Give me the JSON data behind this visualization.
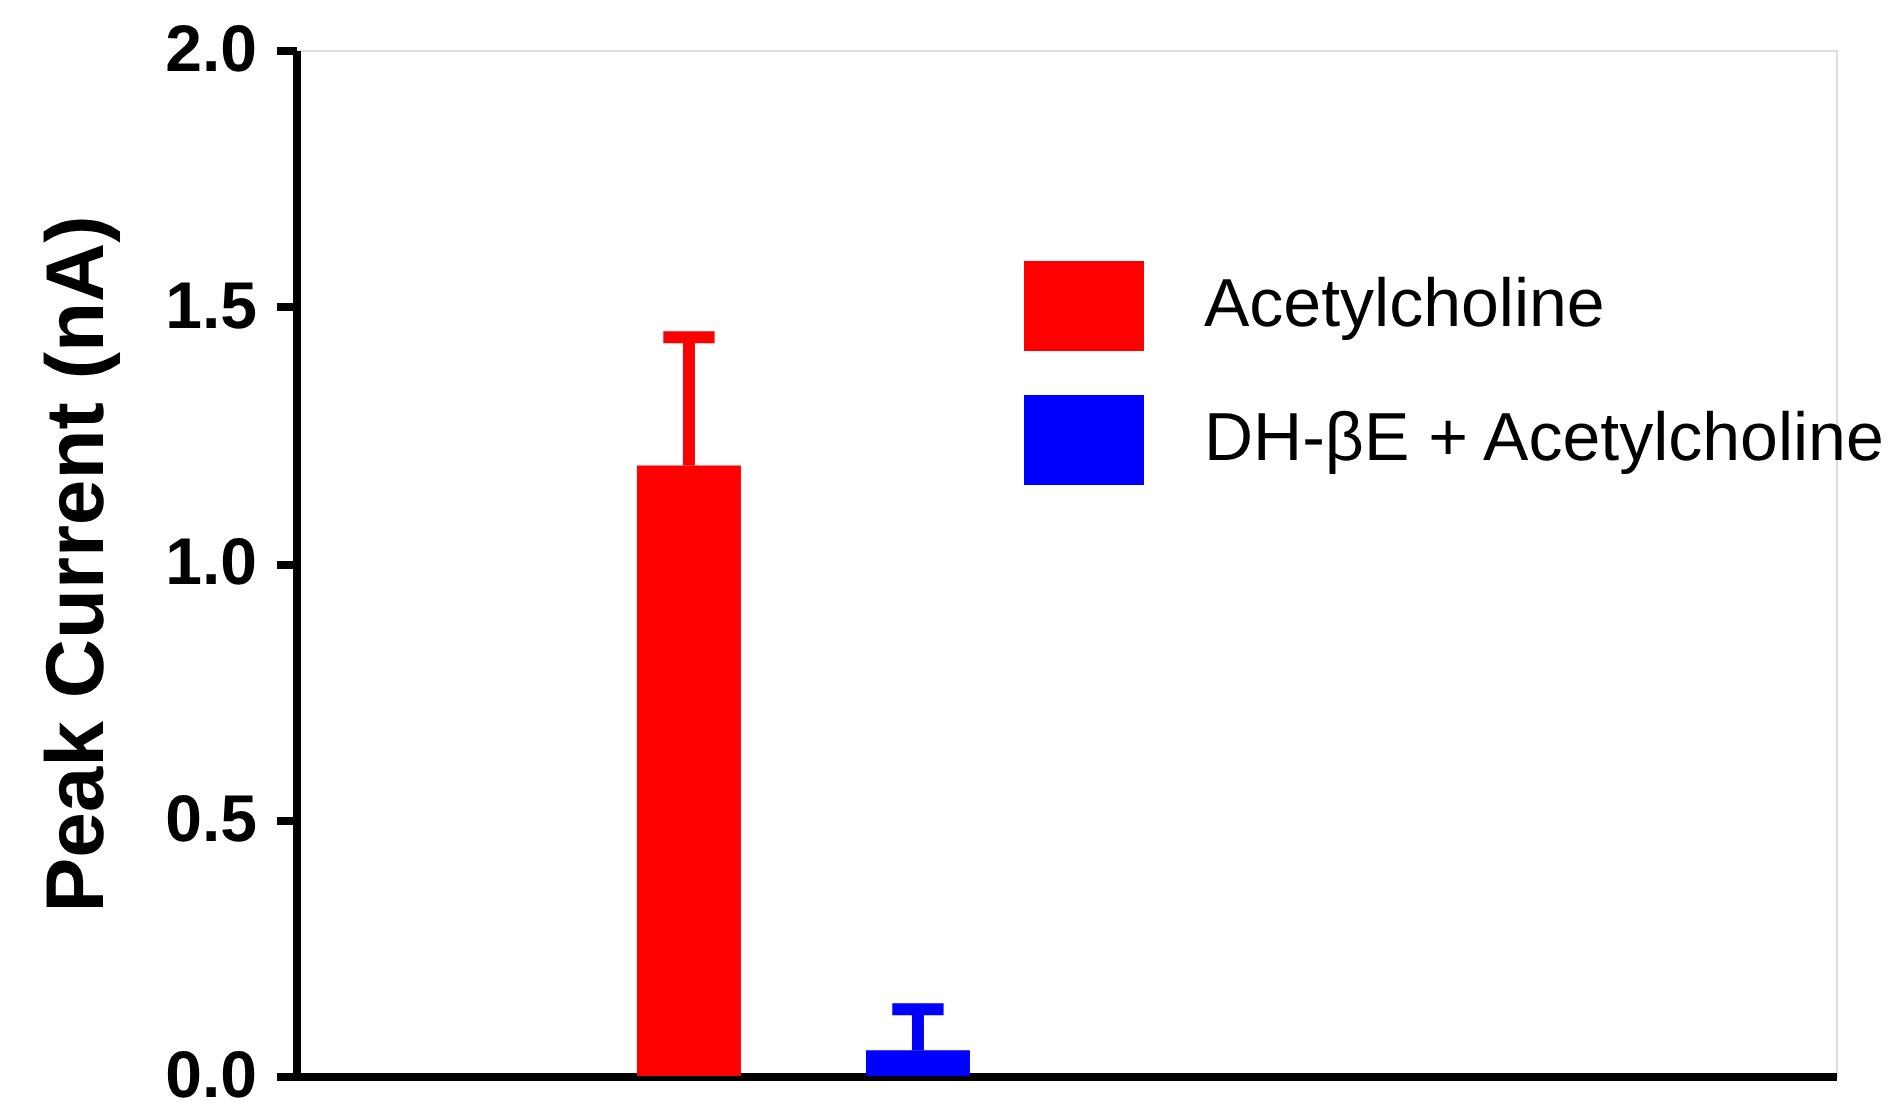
{
  "chart_data": {
    "type": "bar",
    "ylabel": "Peak Current (nA)",
    "categories": [
      null
    ],
    "series": [
      {
        "name": "Acetylcholine",
        "color": "#ff0000",
        "values": [
          1.19
        ],
        "errors": [
          [
            1.19,
            1.44
          ]
        ]
      },
      {
        "name": "DH-βE + Acetylcholine",
        "color": "#0000ff",
        "values": [
          0.05
        ],
        "errors": [
          [
            0.05,
            0.13
          ]
        ]
      }
    ],
    "ylim": [
      0,
      2.0
    ],
    "yticks": [
      {
        "value": 0,
        "label": "0.0"
      },
      {
        "value": 0.5,
        "label": "0.5"
      },
      {
        "value": 1.0,
        "label": "1.0"
      },
      {
        "value": 1.5,
        "label": "1.5"
      },
      {
        "value": 2.0,
        "label": "2.0"
      }
    ],
    "legend": "top right",
    "tick_labels": "y"
  }
}
